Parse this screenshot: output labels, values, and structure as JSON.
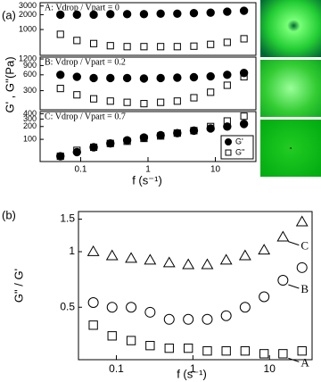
{
  "chart_data": [
    {
      "type": "scatter",
      "panel_label": "(a)",
      "ylabel": "G' , G''(Pa)",
      "annotation": "A: Vdrop / Vpart = 0",
      "log_x": true,
      "log_y": true,
      "x": [
        0.05,
        0.088,
        0.156,
        0.276,
        0.49,
        0.87,
        1.54,
        2.72,
        4.8,
        8.5,
        15,
        26.6
      ],
      "xlim": [
        0.025,
        40
      ],
      "ylim": [
        300,
        3500
      ],
      "yticks": [
        1000,
        2000,
        3000
      ],
      "series": [
        {
          "marker": "circle-filled",
          "color": "#000000",
          "values": [
            2000,
            2000,
            2000,
            2050,
            2050,
            2050,
            2100,
            2100,
            2150,
            2200,
            2300,
            2400
          ]
        },
        {
          "marker": "square-open",
          "color": "#000000",
          "values": [
            800,
            600,
            520,
            470,
            450,
            450,
            450,
            450,
            460,
            500,
            550,
            650
          ]
        }
      ]
    },
    {
      "type": "scatter",
      "annotation": "B: Vdrop / Vpart = 0.2",
      "log_x": true,
      "log_y": true,
      "x": [
        0.05,
        0.088,
        0.156,
        0.276,
        0.49,
        0.87,
        1.54,
        2.72,
        4.8,
        8.5,
        15,
        26.6
      ],
      "xlim": [
        0.025,
        40
      ],
      "ylim": [
        130,
        1300
      ],
      "yticks": [
        300,
        600,
        900,
        1200
      ],
      "series": [
        {
          "marker": "circle-filled",
          "color": "#000000",
          "values": [
            600,
            550,
            520,
            520,
            520,
            510,
            520,
            530,
            540,
            560,
            600,
            650
          ]
        },
        {
          "marker": "square-open",
          "color": "#000000",
          "values": [
            330,
            250,
            210,
            190,
            180,
            170,
            180,
            190,
            220,
            280,
            380,
            550
          ]
        }
      ]
    },
    {
      "type": "scatter",
      "annotation": "C: Vdrop / Vpart = 0.7",
      "xlabel": "f (s⁻¹)",
      "log_x": true,
      "log_y": true,
      "x": [
        0.05,
        0.088,
        0.156,
        0.276,
        0.49,
        0.87,
        1.54,
        2.72,
        4.8,
        8.5,
        15,
        26.6
      ],
      "xlim": [
        0.025,
        40
      ],
      "ylim": [
        30,
        450
      ],
      "yticks": [
        100,
        200,
        300,
        400
      ],
      "xticks": [
        0.1,
        1,
        10
      ],
      "legend": "lower right",
      "series": [
        {
          "name": "G'",
          "marker": "circle-filled",
          "color": "#000000",
          "values": [
            40,
            50,
            65,
            80,
            95,
            110,
            125,
            140,
            160,
            180,
            200,
            230
          ]
        },
        {
          "name": "G\"",
          "marker": "square-open",
          "color": "#000000",
          "values": [
            40,
            55,
            65,
            80,
            90,
            105,
            120,
            140,
            160,
            200,
            270,
            350
          ]
        }
      ]
    },
    {
      "type": "scatter",
      "panel_label": "(b)",
      "ylabel": "G\" / G'",
      "xlabel": "f (s⁻¹)",
      "log_x": true,
      "log_y": true,
      "x": [
        0.05,
        0.088,
        0.156,
        0.276,
        0.49,
        0.87,
        1.54,
        2.72,
        4.8,
        8.5,
        15,
        26.6
      ],
      "xlim": [
        0.032,
        36
      ],
      "ylim": [
        0.26,
        1.65
      ],
      "yticks": [
        0.5,
        1,
        1.5
      ],
      "xticks": [
        0.1,
        1,
        10
      ],
      "series": [
        {
          "name": "C",
          "marker": "triangle-open",
          "color": "#000000",
          "values": [
            1.0,
            0.95,
            0.92,
            0.9,
            0.87,
            0.85,
            0.85,
            0.9,
            0.95,
            1.02,
            1.2,
            1.45
          ]
        },
        {
          "name": "B",
          "marker": "circle-open",
          "color": "#000000",
          "values": [
            0.53,
            0.5,
            0.5,
            0.47,
            0.43,
            0.43,
            0.43,
            0.45,
            0.5,
            0.57,
            0.7,
            0.82
          ]
        },
        {
          "name": "A",
          "marker": "square-open",
          "color": "#000000",
          "values": [
            0.4,
            0.35,
            0.33,
            0.31,
            0.3,
            0.3,
            0.29,
            0.29,
            0.29,
            0.28,
            0.28,
            0.29
          ]
        }
      ]
    }
  ]
}
